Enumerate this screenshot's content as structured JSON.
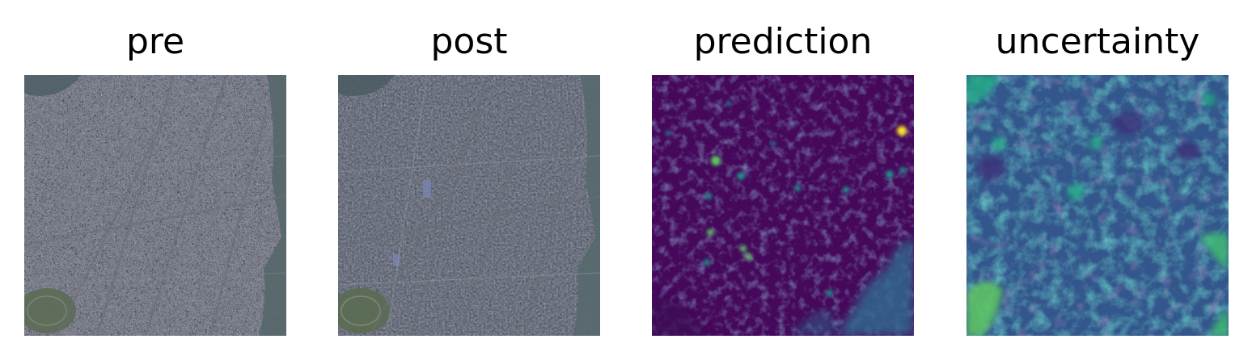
{
  "figure": {
    "panels": [
      {
        "title": "pre",
        "colormap": "RGB satellite image"
      },
      {
        "title": "post",
        "colormap": "RGB satellite image"
      },
      {
        "title": "prediction",
        "colormap": "viridis"
      },
      {
        "title": "uncertainty",
        "colormap": "viridis"
      }
    ]
  },
  "colors": {
    "background": "#ffffff",
    "satellite_base": "#545866",
    "satellite_dark": "#3b3f4b",
    "satellite_light": "#8d8f97",
    "river": "#55676a",
    "racecourse": "#5c6b55",
    "viridis_dark": "#45085b",
    "viridis_mid": "#31688e",
    "viridis_teal": "#21918c",
    "viridis_green": "#5ec962",
    "viridis_yellow": "#fde725",
    "uncertainty_base": "#33578c"
  }
}
